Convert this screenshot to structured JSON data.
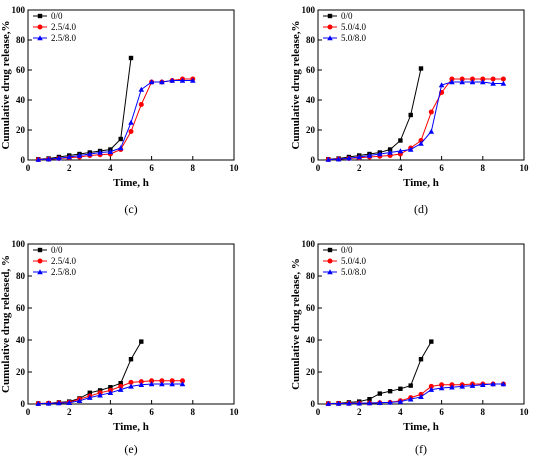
{
  "chart_data": [
    {
      "type": "line",
      "panel_label": "(c)",
      "xlabel": "Time, h",
      "ylabel": "Cumulative drug release,%",
      "xlim": [
        0,
        10
      ],
      "ylim": [
        0,
        100
      ],
      "xticks": [
        0,
        2,
        4,
        6,
        8,
        10
      ],
      "yticks": [
        0,
        20,
        40,
        60,
        80,
        100
      ],
      "legend": "top-left",
      "series": [
        {
          "name": "0/0",
          "color": "#000000",
          "marker": "square",
          "x": [
            0.5,
            1,
            1.5,
            2,
            2.5,
            3,
            3.5,
            4,
            4.5,
            5
          ],
          "y": [
            0.5,
            1,
            2,
            3,
            4,
            5,
            6,
            7,
            14,
            68
          ]
        },
        {
          "name": "2.5/4.0",
          "color": "#ff0000",
          "marker": "circle",
          "x": [
            0.5,
            1,
            1.5,
            2,
            2.5,
            3,
            3.5,
            4,
            4.5,
            5,
            5.5,
            6,
            6.5,
            7,
            7.5,
            8
          ],
          "y": [
            0.3,
            0.5,
            1,
            1.5,
            2,
            3,
            3.5,
            4,
            7,
            19,
            37,
            52,
            52,
            53,
            54,
            54
          ]
        },
        {
          "name": "2.5/8.0",
          "color": "#0000ff",
          "marker": "triangle",
          "x": [
            0.5,
            1,
            1.5,
            2,
            2.5,
            3,
            3.5,
            4,
            4.5,
            5,
            5.5,
            6,
            6.5,
            7,
            7.5,
            8
          ],
          "y": [
            0.3,
            0.6,
            1.2,
            2,
            3,
            4,
            5,
            5.5,
            8,
            25,
            47,
            52,
            52,
            53,
            53,
            53
          ]
        }
      ]
    },
    {
      "type": "line",
      "panel_label": "(d)",
      "xlabel": "Time, h",
      "ylabel": "Cumulative drug release,%",
      "xlim": [
        0,
        10
      ],
      "ylim": [
        0,
        100
      ],
      "xticks": [
        0,
        2,
        4,
        6,
        8,
        10
      ],
      "yticks": [
        0,
        20,
        40,
        60,
        80,
        100
      ],
      "legend": "top-left",
      "series": [
        {
          "name": "0/0",
          "color": "#000000",
          "marker": "square",
          "x": [
            0.5,
            1,
            1.5,
            2,
            2.5,
            3,
            3.5,
            4,
            4.5,
            5
          ],
          "y": [
            0.5,
            1,
            2,
            3,
            4,
            5,
            7,
            13,
            30,
            61
          ]
        },
        {
          "name": "5.0/4.0",
          "color": "#ff0000",
          "marker": "circle",
          "x": [
            0.5,
            1,
            1.5,
            2,
            2.5,
            3,
            3.5,
            4,
            4.5,
            5,
            5.5,
            6,
            6.5,
            7,
            7.5,
            8,
            8.5,
            9
          ],
          "y": [
            0.3,
            0.6,
            1,
            1.5,
            2,
            2.5,
            3,
            4,
            8,
            13,
            32,
            45,
            54,
            54,
            54,
            54,
            54,
            54
          ]
        },
        {
          "name": "5.0/8.0",
          "color": "#0000ff",
          "marker": "triangle",
          "x": [
            0.5,
            1,
            1.5,
            2,
            2.5,
            3,
            3.5,
            4,
            4.5,
            5,
            5.5,
            6,
            6.5,
            7,
            7.5,
            8,
            8.5,
            9
          ],
          "y": [
            0.3,
            0.6,
            1.2,
            2,
            3,
            4,
            5,
            6,
            7,
            11,
            19,
            50,
            52,
            52,
            52,
            52,
            51,
            51
          ]
        }
      ]
    },
    {
      "type": "line",
      "panel_label": "(e)",
      "xlabel": "Time, h",
      "ylabel": "Cumulative drug released, %",
      "xlim": [
        0,
        10
      ],
      "ylim": [
        0,
        100
      ],
      "xticks": [
        0,
        2,
        4,
        6,
        8,
        10
      ],
      "yticks": [
        0,
        20,
        40,
        60,
        80,
        100
      ],
      "legend": "top-left",
      "series": [
        {
          "name": "0/0",
          "color": "#000000",
          "marker": "square",
          "x": [
            0.5,
            1,
            1.5,
            2,
            2.5,
            3,
            3.5,
            4,
            4.5,
            5,
            5.5
          ],
          "y": [
            0.3,
            0.5,
            1,
            1.5,
            3.5,
            7,
            8.5,
            10.5,
            13,
            28,
            39
          ]
        },
        {
          "name": "2.5/4.0",
          "color": "#ff0000",
          "marker": "circle",
          "x": [
            0.5,
            1,
            1.5,
            2,
            2.5,
            3,
            3.5,
            4,
            4.5,
            5,
            5.5,
            6,
            6.5,
            7,
            7.5
          ],
          "y": [
            0.3,
            0.5,
            0.8,
            1,
            3,
            5,
            7,
            8.5,
            11,
            13.5,
            14,
            14.5,
            14.5,
            14.5,
            14.5
          ]
        },
        {
          "name": "2.5/8.0",
          "color": "#0000ff",
          "marker": "triangle",
          "x": [
            0.5,
            1,
            1.5,
            2,
            2.5,
            3,
            3.5,
            4,
            4.5,
            5,
            5.5,
            6,
            6.5,
            7,
            7.5
          ],
          "y": [
            0.2,
            0.4,
            0.6,
            0.8,
            2,
            4,
            5.5,
            7,
            9,
            11,
            12,
            12.5,
            12.5,
            12.5,
            12.5
          ]
        }
      ]
    },
    {
      "type": "line",
      "panel_label": "(f)",
      "xlabel": "Time, h",
      "ylabel": "Cumulative drug release, %",
      "xlim": [
        0,
        10
      ],
      "ylim": [
        0,
        100
      ],
      "xticks": [
        0,
        2,
        4,
        6,
        8,
        10
      ],
      "yticks": [
        0,
        20,
        40,
        60,
        80,
        100
      ],
      "legend": "top-left",
      "series": [
        {
          "name": "0/0",
          "color": "#000000",
          "marker": "square",
          "x": [
            0.5,
            1,
            1.5,
            2,
            2.5,
            3,
            3.5,
            4,
            4.5,
            5,
            5.5
          ],
          "y": [
            0.3,
            0.5,
            1,
            1.5,
            3,
            6.5,
            8,
            9.5,
            11.5,
            28,
            39
          ]
        },
        {
          "name": "5.0/4.0",
          "color": "#ff0000",
          "marker": "circle",
          "x": [
            0.5,
            1,
            1.5,
            2,
            2.5,
            3,
            3.5,
            4,
            4.5,
            5,
            5.5,
            6,
            6.5,
            7,
            7.5,
            8,
            8.5,
            9
          ],
          "y": [
            0.2,
            0.3,
            0.4,
            0.5,
            0.6,
            0.8,
            1,
            2,
            4,
            6,
            11,
            12,
            12,
            12,
            12.5,
            12.5,
            12.5,
            12.5
          ]
        },
        {
          "name": "5.0/8.0",
          "color": "#0000ff",
          "marker": "triangle",
          "x": [
            0.5,
            1,
            1.5,
            2,
            2.5,
            3,
            3.5,
            4,
            4.5,
            5,
            5.5,
            6,
            6.5,
            7,
            7.5,
            8,
            8.5,
            9
          ],
          "y": [
            0.2,
            0.3,
            0.4,
            0.5,
            0.6,
            0.8,
            1,
            1.5,
            3,
            4.5,
            9,
            10,
            10.5,
            11,
            11.5,
            12,
            12.5,
            12.5
          ]
        }
      ]
    }
  ]
}
